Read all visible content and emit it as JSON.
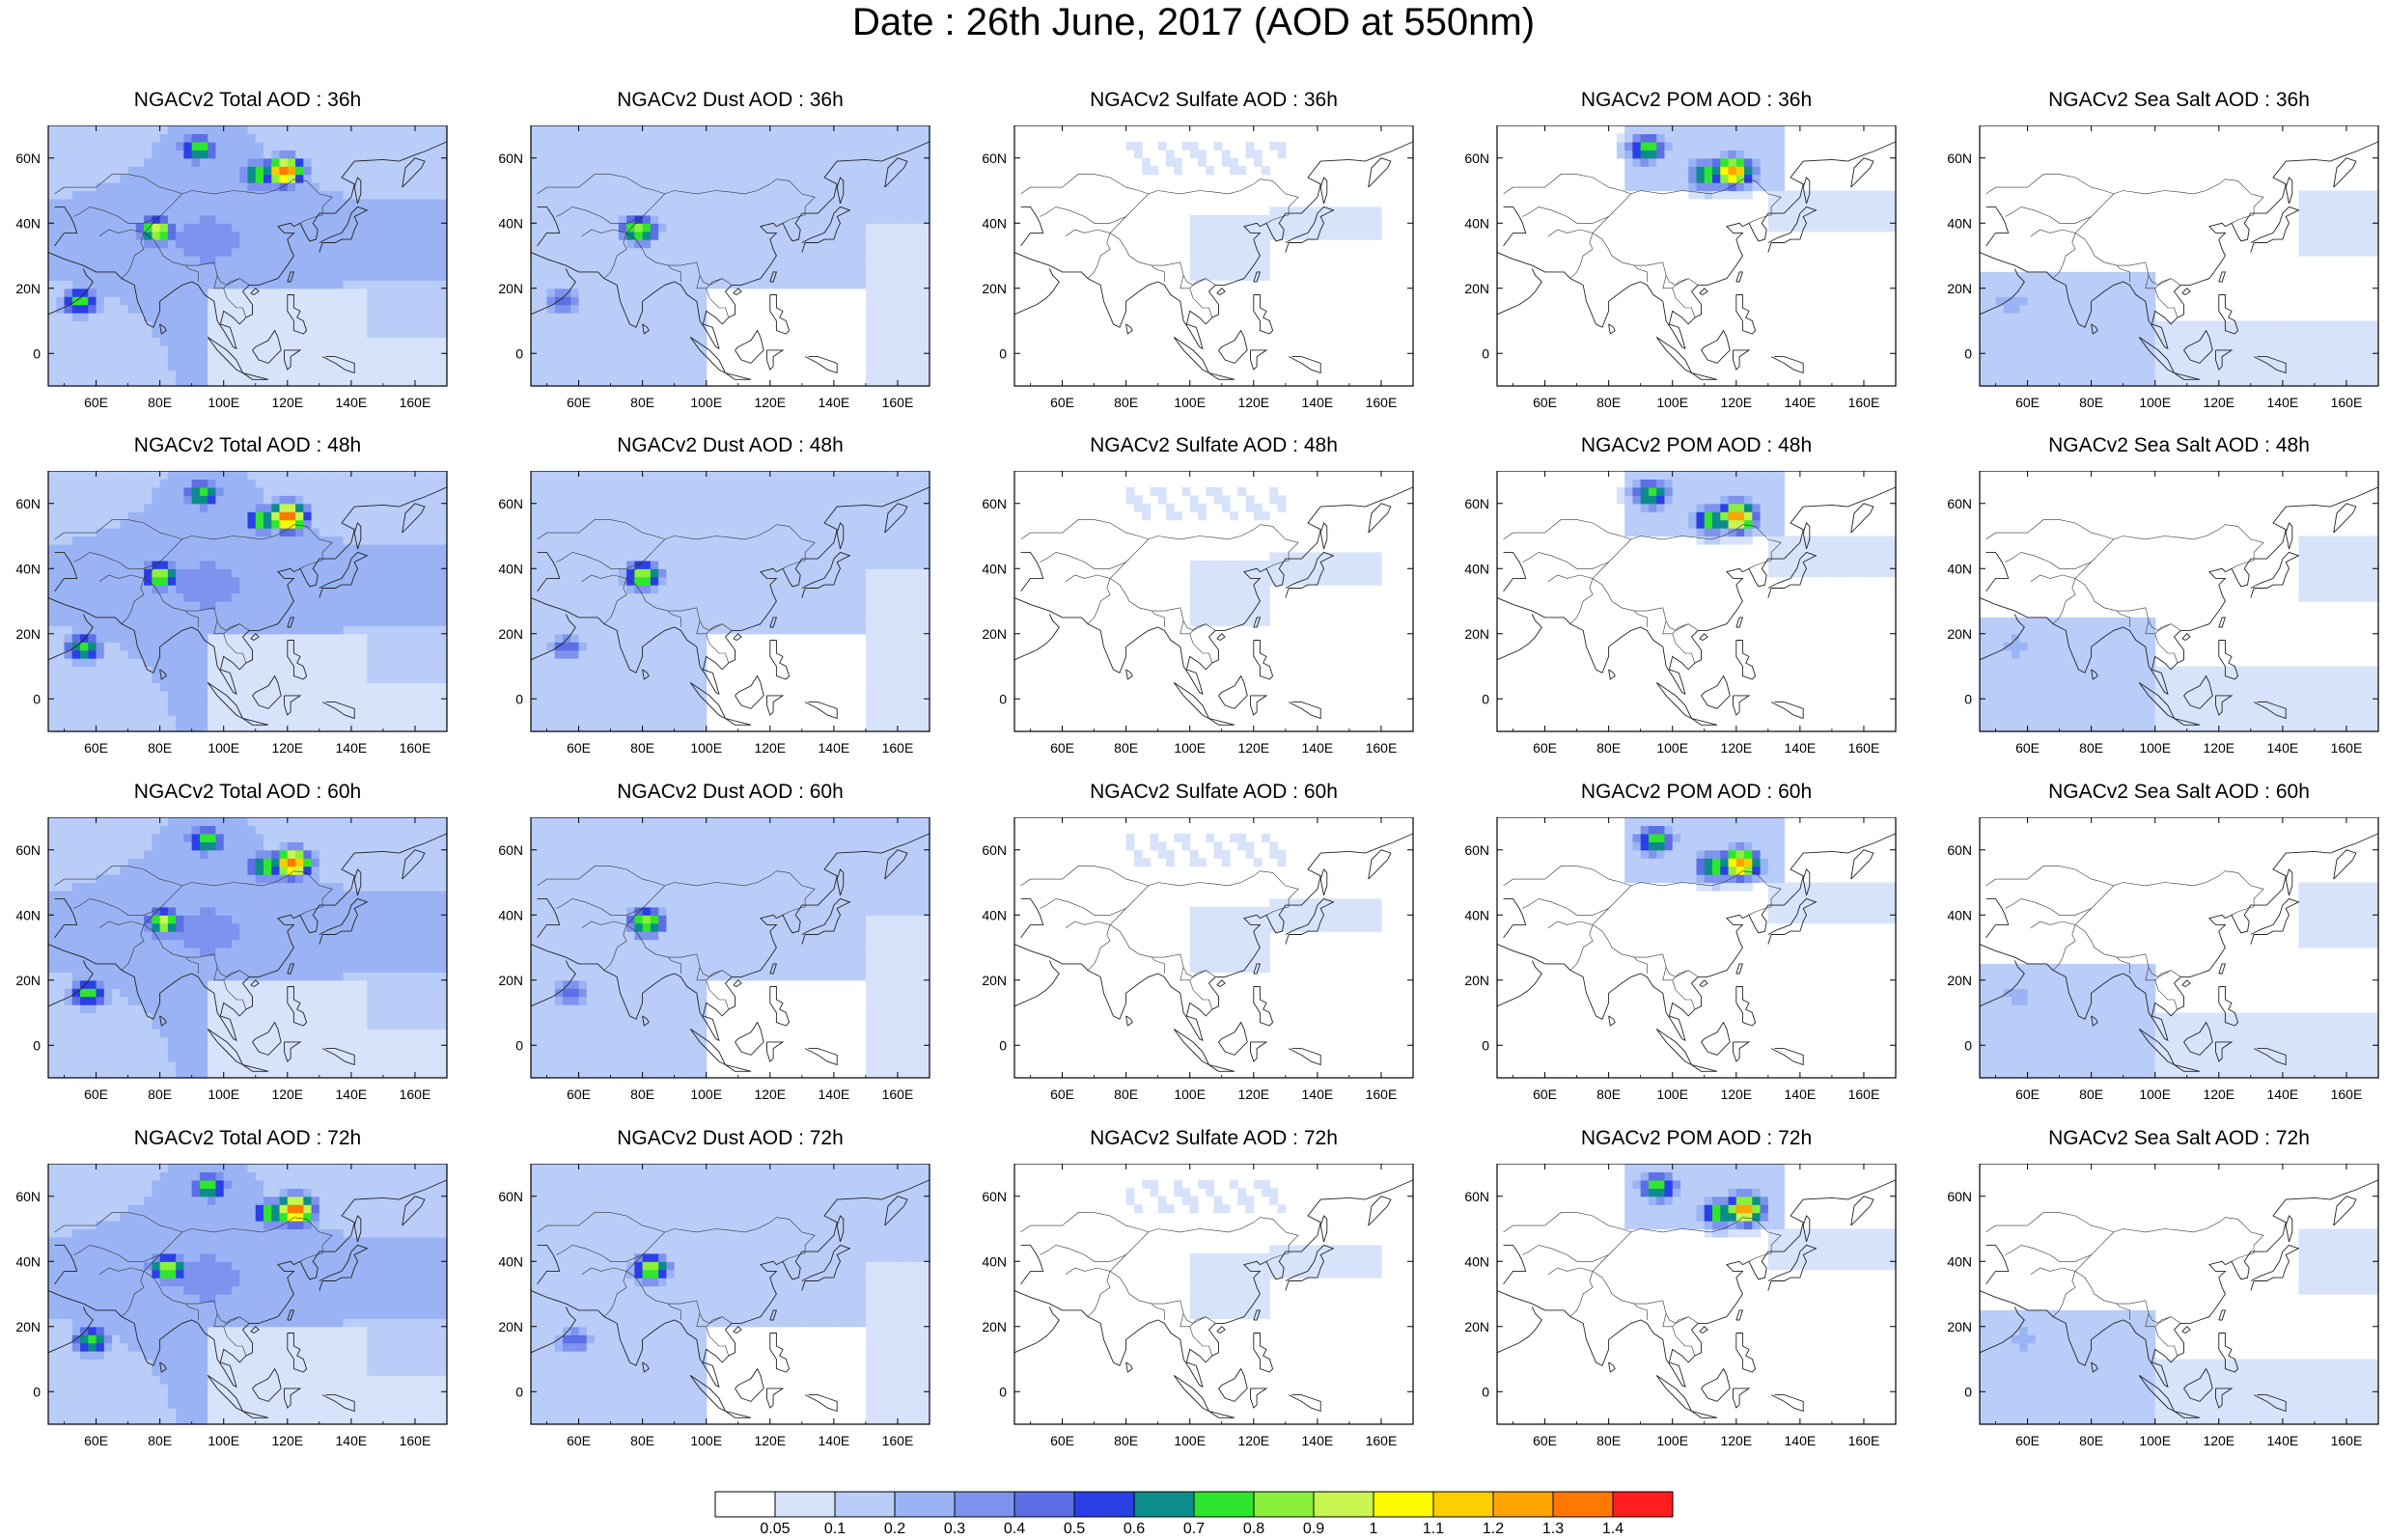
{
  "title": "Date : 26th June, 2017 (AOD at 550nm)",
  "lat_ticks": [
    "60N",
    "40N",
    "20N",
    "0"
  ],
  "lon_ticks": [
    "60E",
    "80E",
    "100E",
    "120E",
    "140E",
    "160E"
  ],
  "panels": [
    {
      "title": "NGACv2 Total AOD : 36h",
      "species": "total",
      "hour": "36h"
    },
    {
      "title": "NGACv2 Dust AOD : 36h",
      "species": "dust",
      "hour": "36h"
    },
    {
      "title": "NGACv2 Sulfate AOD : 36h",
      "species": "sulfate",
      "hour": "36h"
    },
    {
      "title": "NGACv2 POM AOD : 36h",
      "species": "pom",
      "hour": "36h"
    },
    {
      "title": "NGACv2 Sea Salt AOD : 36h",
      "species": "seasalt",
      "hour": "36h"
    },
    {
      "title": "NGACv2 Total AOD : 48h",
      "species": "total",
      "hour": "48h"
    },
    {
      "title": "NGACv2 Dust AOD : 48h",
      "species": "dust",
      "hour": "48h"
    },
    {
      "title": "NGACv2 Sulfate AOD : 48h",
      "species": "sulfate",
      "hour": "48h"
    },
    {
      "title": "NGACv2 POM AOD : 48h",
      "species": "pom",
      "hour": "48h"
    },
    {
      "title": "NGACv2 Sea Salt AOD : 48h",
      "species": "seasalt",
      "hour": "48h"
    },
    {
      "title": "NGACv2 Total AOD : 60h",
      "species": "total",
      "hour": "60h"
    },
    {
      "title": "NGACv2 Dust AOD : 60h",
      "species": "dust",
      "hour": "60h"
    },
    {
      "title": "NGACv2 Sulfate AOD : 60h",
      "species": "sulfate",
      "hour": "60h"
    },
    {
      "title": "NGACv2 POM AOD : 60h",
      "species": "pom",
      "hour": "60h"
    },
    {
      "title": "NGACv2 Sea Salt AOD : 60h",
      "species": "seasalt",
      "hour": "60h"
    },
    {
      "title": "NGACv2 Total AOD : 72h",
      "species": "total",
      "hour": "72h"
    },
    {
      "title": "NGACv2 Dust AOD : 72h",
      "species": "dust",
      "hour": "72h"
    },
    {
      "title": "NGACv2 Sulfate AOD : 72h",
      "species": "sulfate",
      "hour": "72h"
    },
    {
      "title": "NGACv2 POM AOD : 72h",
      "species": "pom",
      "hour": "72h"
    },
    {
      "title": "NGACv2 Sea Salt  AOD : 72h",
      "species": "seasalt",
      "hour": "72h"
    }
  ],
  "colorbar": {
    "labels": [
      "0.05",
      "0.1",
      "0.2",
      "0.3",
      "0.4",
      "0.5",
      "0.6",
      "0.7",
      "0.8",
      "0.9",
      "1",
      "1.1",
      "1.2",
      "1.3",
      "1.4"
    ],
    "colors": [
      "#ffffff",
      "#d7e3fb",
      "#b9cdf8",
      "#9ab3f4",
      "#7d93ee",
      "#5c6fe4",
      "#2b3fe6",
      "#0d8c8c",
      "#2ee62e",
      "#8bf03a",
      "#c8f550",
      "#fffb00",
      "#ffce00",
      "#ffa400",
      "#ff7800",
      "#ff1e1e"
    ]
  },
  "map_data": {
    "domain": {
      "lon_range": [
        45,
        170
      ],
      "lat_range": [
        -10,
        70
      ]
    },
    "coastline": [
      [
        [
          45,
          31
        ],
        [
          50,
          29
        ],
        [
          56,
          27
        ],
        [
          60,
          25
        ],
        [
          66,
          25
        ],
        [
          68,
          23
        ],
        [
          72,
          21
        ],
        [
          73,
          16
        ],
        [
          76,
          9
        ],
        [
          78,
          8
        ],
        [
          80,
          13
        ],
        [
          80,
          16
        ],
        [
          84,
          19
        ],
        [
          87,
          21
        ],
        [
          90,
          22
        ],
        [
          92,
          21
        ],
        [
          94,
          18
        ],
        [
          97,
          16
        ],
        [
          98,
          10
        ],
        [
          100,
          7
        ],
        [
          103,
          2
        ],
        [
          104,
          1.5
        ],
        [
          103,
          5
        ],
        [
          102,
          8
        ],
        [
          99,
          9
        ],
        [
          100,
          13
        ],
        [
          103,
          11
        ],
        [
          105,
          9
        ],
        [
          107,
          11
        ],
        [
          109,
          12
        ],
        [
          109,
          15
        ],
        [
          106,
          19
        ],
        [
          108,
          21
        ],
        [
          111,
          21
        ],
        [
          114,
          22
        ],
        [
          117,
          23
        ],
        [
          120,
          27
        ],
        [
          122,
          30
        ],
        [
          121,
          32
        ],
        [
          120,
          35
        ],
        [
          122,
          37
        ],
        [
          119,
          37
        ],
        [
          117,
          39
        ],
        [
          121,
          40
        ],
        [
          122,
          39
        ],
        [
          124,
          40
        ],
        [
          125,
          38
        ],
        [
          126,
          36
        ],
        [
          127,
          34.5
        ],
        [
          129,
          35
        ],
        [
          129.5,
          38
        ],
        [
          128,
          40
        ],
        [
          130,
          43
        ],
        [
          135,
          43
        ],
        [
          140,
          48
        ],
        [
          141,
          52
        ],
        [
          137,
          54
        ],
        [
          141,
          59
        ],
        [
          150,
          59.5
        ],
        [
          155,
          59
        ],
        [
          160,
          61
        ],
        [
          163,
          62
        ],
        [
          170,
          65
        ]
      ],
      [
        [
          130,
          31
        ],
        [
          131,
          34
        ],
        [
          133,
          34
        ],
        [
          135,
          34
        ],
        [
          137,
          35
        ],
        [
          140,
          35
        ],
        [
          141,
          38
        ],
        [
          142,
          40
        ],
        [
          141,
          42
        ],
        [
          143,
          43
        ],
        [
          145,
          44
        ],
        [
          142,
          45
        ],
        [
          140,
          43
        ],
        [
          139,
          40
        ],
        [
          137,
          37
        ],
        [
          133,
          35.5
        ],
        [
          130,
          34
        ]
      ],
      [
        [
          142,
          46
        ],
        [
          143,
          49
        ],
        [
          143,
          53
        ],
        [
          142,
          54
        ],
        [
          141,
          51
        ],
        [
          142,
          46
        ]
      ],
      [
        [
          156,
          51
        ],
        [
          158,
          53
        ],
        [
          160,
          55
        ],
        [
          162,
          57
        ],
        [
          163,
          59
        ],
        [
          160,
          60
        ],
        [
          157,
          57
        ],
        [
          156,
          51
        ]
      ],
      [
        [
          120,
          22
        ],
        [
          121,
          25
        ],
        [
          122,
          25
        ],
        [
          121,
          22
        ],
        [
          120,
          22
        ]
      ],
      [
        [
          120,
          18
        ],
        [
          122,
          18
        ],
        [
          122,
          14
        ],
        [
          124,
          13
        ],
        [
          123,
          11
        ],
        [
          125,
          10
        ],
        [
          126,
          7
        ],
        [
          125,
          6
        ],
        [
          122,
          7
        ],
        [
          122,
          10
        ],
        [
          120,
          13
        ],
        [
          120,
          18
        ]
      ],
      [
        [
          95,
          5
        ],
        [
          98,
          3
        ],
        [
          101,
          1
        ],
        [
          104,
          -2
        ],
        [
          106,
          -6
        ],
        [
          104,
          -5
        ],
        [
          101,
          -2
        ],
        [
          98,
          1
        ],
        [
          95,
          5
        ]
      ],
      [
        [
          106,
          -6
        ],
        [
          110,
          -7
        ],
        [
          114,
          -8
        ],
        [
          109,
          -8
        ],
        [
          106,
          -6
        ]
      ],
      [
        [
          109,
          1
        ],
        [
          111,
          -2
        ],
        [
          114,
          -3
        ],
        [
          116,
          -1
        ],
        [
          118,
          1
        ],
        [
          117,
          5
        ],
        [
          116,
          7
        ],
        [
          114,
          4
        ],
        [
          110,
          2
        ],
        [
          109,
          1
        ]
      ],
      [
        [
          119,
          1
        ],
        [
          121,
          1
        ],
        [
          124,
          1
        ],
        [
          121,
          -1
        ],
        [
          121,
          -4
        ],
        [
          120,
          -5
        ],
        [
          119,
          -2
        ],
        [
          119,
          1
        ]
      ],
      [
        [
          131,
          -1
        ],
        [
          135,
          -3
        ],
        [
          138,
          -5
        ],
        [
          141,
          -6
        ],
        [
          141,
          -3
        ],
        [
          138,
          -2
        ],
        [
          135,
          -1
        ],
        [
          132,
          -1
        ]
      ],
      [
        [
          80,
          9
        ],
        [
          81.5,
          8
        ],
        [
          82,
          7
        ],
        [
          80.5,
          6
        ],
        [
          80,
          9
        ]
      ],
      [
        [
          108.5,
          18.5
        ],
        [
          110,
          20
        ],
        [
          111,
          19
        ],
        [
          109.5,
          18
        ],
        [
          108.5,
          18.5
        ]
      ],
      [
        [
          45,
          12
        ],
        [
          52,
          15
        ],
        [
          55,
          17
        ],
        [
          57,
          19
        ],
        [
          59,
          22
        ],
        [
          57,
          24
        ],
        [
          56,
          26
        ]
      ],
      [
        [
          47,
          33
        ],
        [
          50,
          37
        ],
        [
          54,
          37
        ],
        [
          53,
          40
        ],
        [
          52,
          42
        ],
        [
          50,
          45
        ],
        [
          47,
          45
        ]
      ]
    ],
    "borders": [
      [
        [
          61,
          36
        ],
        [
          64,
          38
        ],
        [
          67,
          37
        ],
        [
          71,
          38
        ],
        [
          75,
          37
        ],
        [
          74,
          34
        ],
        [
          75,
          32
        ],
        [
          72,
          30
        ],
        [
          71,
          27
        ],
        [
          70,
          25
        ],
        [
          68,
          23
        ]
      ],
      [
        [
          75,
          37
        ],
        [
          78,
          35
        ],
        [
          80,
          32
        ],
        [
          81,
          30
        ],
        [
          84,
          28
        ],
        [
          88,
          27
        ],
        [
          92,
          27
        ],
        [
          97,
          28
        ],
        [
          98,
          24
        ],
        [
          99,
          22
        ],
        [
          101,
          21
        ],
        [
          105,
          23
        ],
        [
          108,
          21
        ]
      ],
      [
        [
          75,
          37
        ],
        [
          80,
          42
        ],
        [
          83,
          45
        ],
        [
          87,
          49
        ],
        [
          90,
          50
        ],
        [
          97,
          49
        ],
        [
          103,
          50
        ],
        [
          108,
          49.5
        ],
        [
          112,
          49
        ],
        [
          116,
          50
        ],
        [
          120,
          52
        ],
        [
          122,
          53.5
        ],
        [
          126,
          53
        ],
        [
          130,
          49
        ],
        [
          134,
          48
        ],
        [
          131,
          45
        ],
        [
          131,
          42.5
        ],
        [
          129,
          42
        ],
        [
          126,
          41
        ],
        [
          124,
          40
        ]
      ],
      [
        [
          87,
          49
        ],
        [
          84,
          50
        ],
        [
          80,
          51
        ],
        [
          75,
          54
        ],
        [
          70,
          55
        ],
        [
          65,
          55
        ],
        [
          60,
          51
        ],
        [
          55,
          51
        ],
        [
          50,
          51
        ],
        [
          47,
          49
        ]
      ],
      [
        [
          98,
          24
        ],
        [
          97,
          20
        ],
        [
          100,
          20
        ],
        [
          102,
          22
        ],
        [
          105,
          23
        ]
      ],
      [
        [
          100,
          20
        ],
        [
          101,
          17
        ],
        [
          104,
          14
        ],
        [
          106,
          14
        ],
        [
          107,
          11
        ]
      ],
      [
        [
          88,
          27
        ],
        [
          89,
          26
        ],
        [
          92,
          25
        ],
        [
          92,
          22
        ]
      ],
      [
        [
          80,
          42
        ],
        [
          75,
          40
        ],
        [
          70,
          40
        ],
        [
          67,
          42
        ],
        [
          62,
          44
        ],
        [
          58,
          45
        ],
        [
          55,
          43
        ],
        [
          53,
          42
        ]
      ]
    ],
    "aod_field": [
      {
        "lon": 119,
        "lat": 56,
        "total": 1.4,
        "dust": 0.1,
        "sulfate": 0.06,
        "pom": 1.3,
        "seasalt": 0.03
      },
      {
        "lon": 111,
        "lat": 55,
        "total": 0.8,
        "dust": 0.1,
        "sulfate": 0.06,
        "pom": 0.8,
        "seasalt": 0.03
      },
      {
        "lon": 92,
        "lat": 63,
        "total": 0.8,
        "dust": 0.1,
        "sulfate": 0.05,
        "pom": 0.8,
        "seasalt": 0.03
      },
      {
        "lon": 79,
        "lat": 38,
        "total": 0.95,
        "dust": 0.9,
        "sulfate": 0.05,
        "pom": 0.05,
        "seasalt": 0.03
      },
      {
        "lon": 55,
        "lat": 16,
        "total": 0.8,
        "dust": 0.5,
        "sulfate": 0.05,
        "pom": 0.05,
        "seasalt": 0.3
      },
      {
        "lon": 120,
        "lat": 30,
        "total": 0.3,
        "dust": 0.1,
        "sulfate": 0.15,
        "pom": 0.1,
        "seasalt": 0.05
      },
      {
        "lon": 155,
        "lat": 38,
        "total": 0.3,
        "dust": 0.1,
        "sulfate": 0.1,
        "pom": 0.12,
        "seasalt": 0.12
      }
    ]
  }
}
